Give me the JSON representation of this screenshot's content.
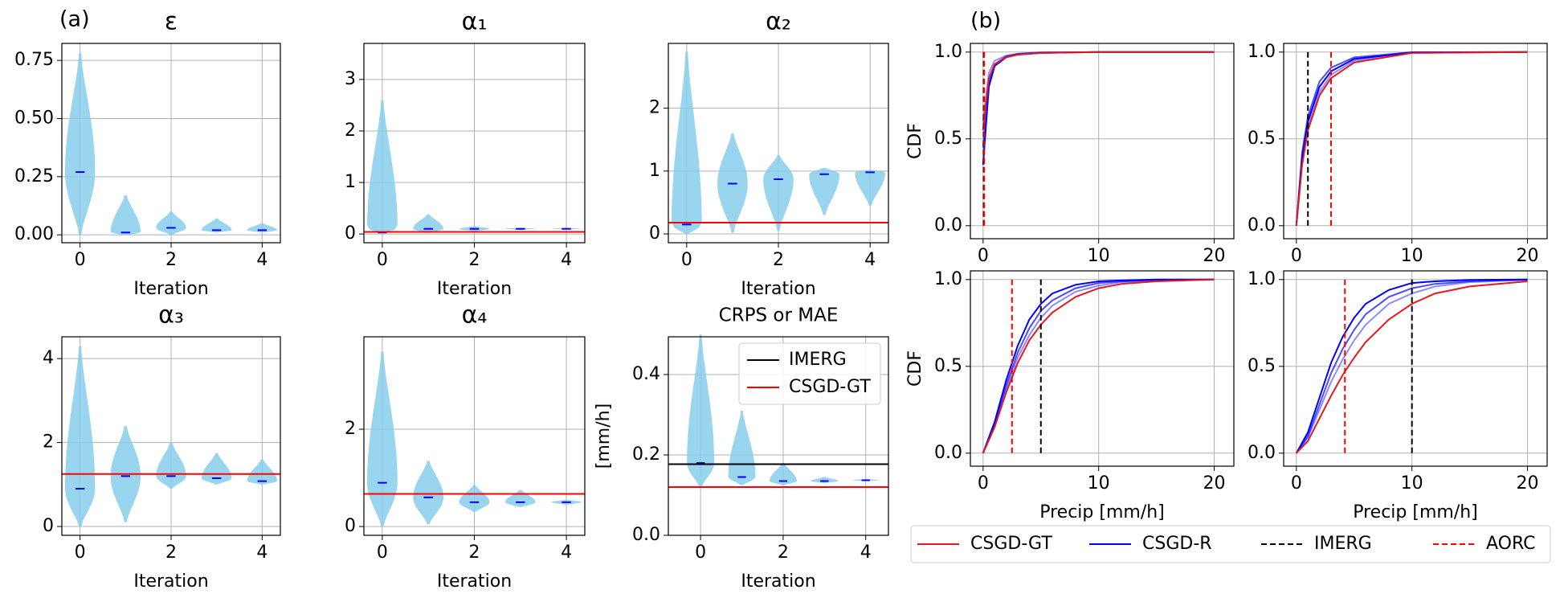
{
  "chart_data": [
    {
      "type": "violin",
      "label": "(a)",
      "title": "ε",
      "xlabel": "Iteration",
      "x": [
        0,
        1,
        2,
        3,
        4
      ],
      "min": [
        0,
        0,
        0,
        0.01,
        0.01
      ],
      "max": [
        0.78,
        0.17,
        0.1,
        0.07,
        0.05
      ],
      "median": [
        0.27,
        0.01,
        0.03,
        0.02,
        0.02
      ],
      "xlim": [
        -0.4,
        4.4
      ],
      "xticks": [
        0,
        2,
        4
      ],
      "ylim": [
        -0.034,
        0.823
      ],
      "yticks": [
        {
          "value": 0,
          "label": "0.00"
        },
        {
          "value": 0.25,
          "label": "0.25"
        },
        {
          "value": 0.5,
          "label": "0.50"
        },
        {
          "value": 0.75,
          "label": "0.75"
        }
      ],
      "color": "#87ceeb",
      "median_color": "#0000ff",
      "grid": true
    },
    {
      "type": "violin",
      "title": "α₁",
      "xlabel": "Iteration",
      "x": [
        0,
        1,
        2,
        3,
        4
      ],
      "min": [
        0,
        0.02,
        0.05,
        0.08,
        0.09
      ],
      "max": [
        2.6,
        0.38,
        0.15,
        0.12,
        0.12
      ],
      "median": [
        0.03,
        0.1,
        0.1,
        0.1,
        0.1
      ],
      "xlim": [
        -0.4,
        4.4
      ],
      "xticks": [
        0,
        2,
        4
      ],
      "ylim": [
        -0.17,
        3.7
      ],
      "yticks": [
        0,
        1,
        2,
        3
      ],
      "lines": [
        {
          "color": "#ff0000",
          "value": 0.04
        }
      ],
      "color": "#87ceeb",
      "median_color": "#0000ff",
      "grid": true
    },
    {
      "type": "violin",
      "title": "α₂",
      "xlabel": "Iteration",
      "x": [
        0,
        1,
        2,
        3,
        4
      ],
      "min": [
        0,
        0.02,
        0.05,
        0.3,
        0.45
      ],
      "max": [
        2.9,
        1.6,
        1.25,
        1.05,
        1.02
      ],
      "median": [
        0.15,
        0.8,
        0.87,
        0.95,
        0.98
      ],
      "xlim": [
        -0.4,
        4.4
      ],
      "xticks": [
        0,
        2,
        4
      ],
      "ylim": [
        -0.14,
        3.03
      ],
      "yticks": [
        0,
        1,
        2
      ],
      "lines": [
        {
          "color": "#ff0000",
          "value": 0.18
        }
      ],
      "color": "#87ceeb",
      "median_color": "#0000ff",
      "grid": true
    },
    {
      "type": "violin",
      "title": "α₃",
      "xlabel": "Iteration",
      "x": [
        0,
        1,
        2,
        3,
        4
      ],
      "min": [
        0,
        0.1,
        0.9,
        1.0,
        1.0
      ],
      "max": [
        4.3,
        2.4,
        2.0,
        1.75,
        1.6
      ],
      "median": [
        0.9,
        1.2,
        1.2,
        1.15,
        1.08
      ],
      "xlim": [
        -0.4,
        4.4
      ],
      "xticks": [
        0,
        2,
        4
      ],
      "ylim": [
        -0.21,
        4.52
      ],
      "yticks": [
        0,
        2,
        4
      ],
      "lines": [
        {
          "color": "#ff0000",
          "value": 1.25
        }
      ],
      "color": "#87ceeb",
      "median_color": "#0000ff",
      "grid": true
    },
    {
      "type": "violin",
      "title": "α₄",
      "xlabel": "Iteration",
      "x": [
        0,
        1,
        2,
        3,
        4
      ],
      "min": [
        0,
        0.05,
        0.3,
        0.4,
        0.45
      ],
      "max": [
        3.6,
        1.35,
        0.85,
        0.75,
        0.55
      ],
      "median": [
        0.9,
        0.6,
        0.5,
        0.5,
        0.5
      ],
      "xlim": [
        -0.4,
        4.4
      ],
      "xticks": [
        0,
        2,
        4
      ],
      "ylim": [
        -0.18,
        3.9
      ],
      "yticks": [
        0,
        2
      ],
      "lines": [
        {
          "color": "#ff0000",
          "value": 0.67
        }
      ],
      "color": "#87ceeb",
      "median_color": "#0000ff",
      "grid": true
    },
    {
      "type": "violin",
      "title": "CRPS or MAE",
      "xlabel": "Iteration",
      "ylabel": "[mm/h]",
      "x": [
        0,
        1,
        2,
        3,
        4
      ],
      "min": [
        0.12,
        0.125,
        0.125,
        0.13,
        0.135
      ],
      "max": [
        0.5,
        0.31,
        0.18,
        0.145,
        0.14
      ],
      "median": [
        0.18,
        0.145,
        0.135,
        0.135,
        0.137
      ],
      "xlim": [
        -0.78,
        4.55
      ],
      "xticks": [
        0,
        2,
        4
      ],
      "ylim": [
        0,
        0.494
      ],
      "yticks": [
        {
          "value": 0,
          "label": "0.0"
        },
        {
          "value": 0.2,
          "label": "0.2"
        },
        {
          "value": 0.4,
          "label": "0.4"
        }
      ],
      "lines": [
        {
          "name": "IMERG",
          "color": "#000000",
          "value": 0.177
        },
        {
          "name": "CSGD-GT",
          "color": "#ff0000",
          "value": 0.12
        }
      ],
      "legend": "upper right",
      "color": "#87ceeb",
      "median_color": "#0000ff",
      "grid": true
    },
    {
      "type": "cdf",
      "label": "(b)",
      "legend": "lower center",
      "series": [
        {
          "name": "CSGD-GT",
          "color": "#e41a1c"
        },
        {
          "name": "CSGD-R",
          "color": "#0000ff"
        },
        {
          "name": "IMERG",
          "color": "#000000",
          "dash": true
        },
        {
          "name": "AORC",
          "color": "#ff0000",
          "dash": true
        }
      ],
      "panels": [
        {
          "ylabel": "CDF",
          "xlim": [
            -1.1,
            21.7
          ],
          "xticks": [
            0,
            10,
            20
          ],
          "ylim": [
            -0.075,
            1.05
          ],
          "yticks": [
            {
              "value": 0,
              "label": "0.0"
            },
            {
              "value": 0.5,
              "label": "0.5"
            },
            {
              "value": 1,
              "label": "1.0"
            }
          ],
          "x": [
            0,
            0.5,
            1,
            2,
            3,
            5,
            10,
            20
          ],
          "gt": [
            0.55,
            0.85,
            0.93,
            0.97,
            0.985,
            0.995,
            1,
            1
          ],
          "r": [
            [
              0.35,
              0.8,
              0.92,
              0.97,
              0.985,
              0.995,
              1,
              1
            ],
            [
              0.45,
              0.83,
              0.93,
              0.975,
              0.99,
              0.997,
              1,
              1
            ],
            [
              0.6,
              0.88,
              0.95,
              0.98,
              0.99,
              0.998,
              1,
              1
            ]
          ],
          "imerg": 0.05,
          "aorc": 0.1
        },
        {
          "xlim": [
            -1.1,
            21.7
          ],
          "xticks": [
            0,
            10,
            20
          ],
          "ylim": [
            -0.075,
            1.05
          ],
          "yticks": [
            {
              "value": 0,
              "label": "0.0"
            },
            {
              "value": 0.5,
              "label": "0.5"
            },
            {
              "value": 1,
              "label": "1.0"
            }
          ],
          "x": [
            0,
            0.5,
            1,
            2,
            3,
            5,
            10,
            20
          ],
          "gt": [
            0,
            0.35,
            0.55,
            0.75,
            0.85,
            0.94,
            0.995,
            1
          ],
          "r": [
            [
              0,
              0.4,
              0.6,
              0.8,
              0.89,
              0.96,
              0.998,
              1
            ],
            [
              0,
              0.42,
              0.63,
              0.83,
              0.91,
              0.97,
              0.999,
              1
            ],
            [
              0,
              0.38,
              0.57,
              0.77,
              0.87,
              0.95,
              0.996,
              1
            ]
          ],
          "imerg": 1.0,
          "aorc": 3.0
        },
        {
          "ylabel": "CDF",
          "xlabel": "Precip [mm/h]",
          "xlim": [
            -1.1,
            21.7
          ],
          "xticks": [
            0,
            10,
            20
          ],
          "ylim": [
            -0.075,
            1.05
          ],
          "yticks": [
            {
              "value": 0,
              "label": "0.0"
            },
            {
              "value": 0.5,
              "label": "0.5"
            },
            {
              "value": 1,
              "label": "1.0"
            }
          ],
          "x": [
            0,
            1,
            2,
            3,
            4,
            5,
            6,
            8,
            10,
            12,
            15,
            20
          ],
          "gt": [
            0,
            0.15,
            0.35,
            0.52,
            0.65,
            0.74,
            0.81,
            0.9,
            0.95,
            0.975,
            0.99,
            1
          ],
          "r": [
            [
              0,
              0.18,
              0.42,
              0.62,
              0.77,
              0.86,
              0.92,
              0.97,
              0.99,
              0.995,
              1,
              1
            ],
            [
              0,
              0.17,
              0.39,
              0.58,
              0.72,
              0.82,
              0.88,
              0.95,
              0.98,
              0.99,
              0.998,
              1
            ],
            [
              0,
              0.16,
              0.37,
              0.55,
              0.68,
              0.78,
              0.85,
              0.93,
              0.965,
              0.985,
              0.995,
              1
            ]
          ],
          "imerg": 5,
          "aorc": 2.5
        },
        {
          "xlabel": "Precip [mm/h]",
          "xlim": [
            -1.1,
            21.7
          ],
          "xticks": [
            0,
            10,
            20
          ],
          "ylim": [
            -0.075,
            1.05
          ],
          "yticks": [
            {
              "value": 0,
              "label": "0.0"
            },
            {
              "value": 0.5,
              "label": "0.5"
            },
            {
              "value": 1,
              "label": "1.0"
            }
          ],
          "x": [
            0,
            1,
            2,
            3,
            4,
            5,
            6,
            8,
            10,
            12,
            15,
            20
          ],
          "gt": [
            0,
            0.07,
            0.2,
            0.33,
            0.45,
            0.55,
            0.64,
            0.77,
            0.86,
            0.92,
            0.96,
            0.99
          ],
          "r": [
            [
              0,
              0.12,
              0.32,
              0.52,
              0.67,
              0.78,
              0.86,
              0.94,
              0.98,
              0.99,
              0.998,
              1
            ],
            [
              0,
              0.1,
              0.28,
              0.46,
              0.6,
              0.71,
              0.8,
              0.9,
              0.95,
              0.975,
              0.99,
              1
            ],
            [
              0,
              0.09,
              0.25,
              0.41,
              0.54,
              0.65,
              0.74,
              0.86,
              0.92,
              0.96,
              0.985,
              0.998
            ]
          ],
          "imerg": 10,
          "aorc": 4.2
        }
      ]
    }
  ]
}
